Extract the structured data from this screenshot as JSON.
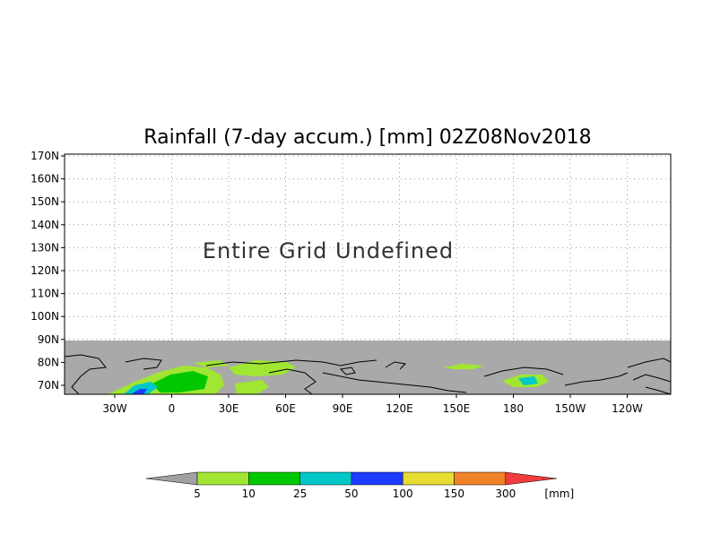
{
  "title": "Rainfall (7-day accum.) [mm] 02Z08Nov2018",
  "message": "Entire Grid Undefined",
  "lat_labels": [
    "170N",
    "160N",
    "150N",
    "140N",
    "130N",
    "120N",
    "110N",
    "100N",
    "90N",
    "80N",
    "70N"
  ],
  "lon_labels": [
    "30W",
    "0",
    "30E",
    "60E",
    "90E",
    "120E",
    "150E",
    "180",
    "150W",
    "120W"
  ],
  "colorbar": {
    "labels": [
      "5",
      "10",
      "25",
      "50",
      "100",
      "150",
      "300"
    ],
    "unit": "[mm]",
    "colors": [
      "#a0a0a0",
      "#a0e632",
      "#00c800",
      "#00c8c8",
      "#1e3cff",
      "#e6dc32",
      "#f08228",
      "#f03c3c"
    ]
  },
  "colors": {
    "undefined_band": "#a9a9a9",
    "coast": "#000000"
  }
}
